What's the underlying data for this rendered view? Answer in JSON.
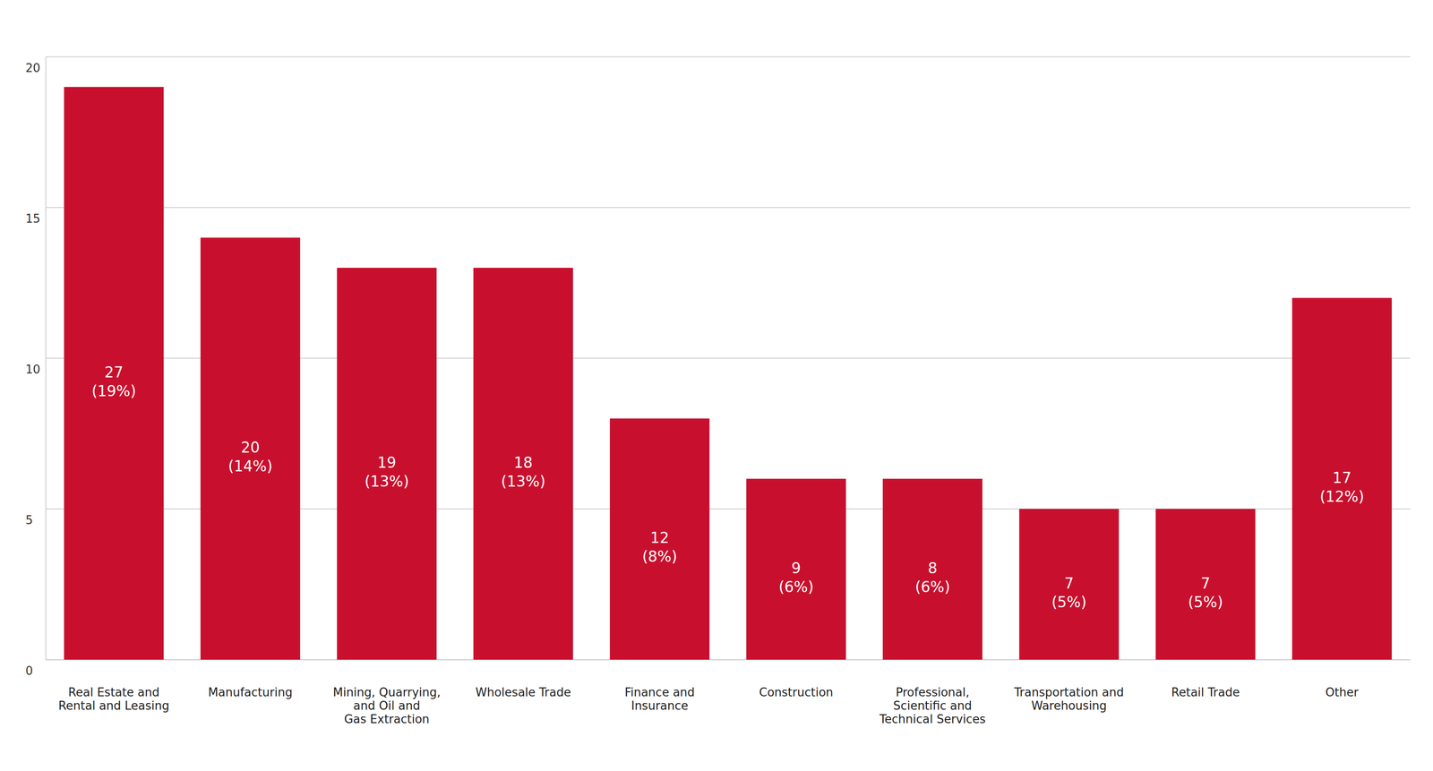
{
  "chart_data": {
    "type": "bar",
    "categories": [
      "Real Estate and\nRental and Leasing",
      "Manufacturing",
      "Mining, Quarrying,\nand Oil and\nGas Extraction",
      "Wholesale Trade",
      "Finance and\nInsurance",
      "Construction",
      "Professional,\nScientific and\nTechnical Services",
      "Transportation and\nWarehousing",
      "Retail Trade",
      "Other"
    ],
    "values": [
      19,
      14,
      13,
      13,
      8,
      6,
      6,
      5,
      5,
      12
    ],
    "value_labels": [
      "27\n(19%)",
      "20\n(14%)",
      "19\n(13%)",
      "18\n(13%)",
      "12\n(8%)",
      "9\n(6%)",
      "8\n(6%)",
      "7\n(5%)",
      "7\n(5%)",
      "17\n(12%)"
    ],
    "data_labels": true,
    "color": "#c8102e",
    "ylim": [
      0,
      20
    ],
    "yticks": [
      0,
      5,
      10,
      15,
      20
    ],
    "grid": true
  }
}
